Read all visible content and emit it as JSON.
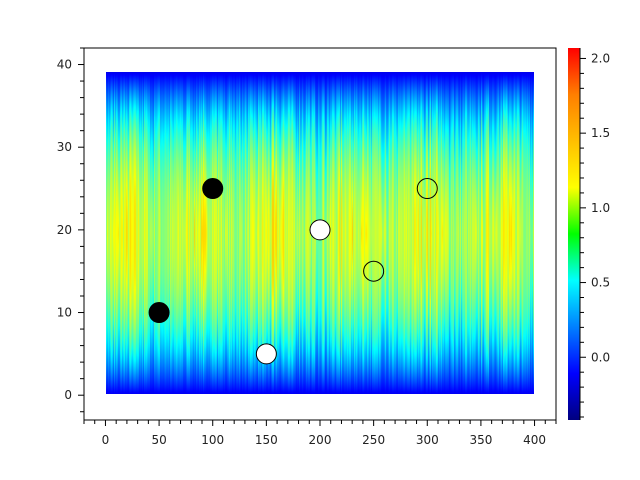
{
  "chart_data": {
    "type": "heatmap",
    "title": "",
    "xlabel": "",
    "ylabel": "",
    "xlim": [
      -20,
      420
    ],
    "ylim": [
      -3,
      42
    ],
    "heatmap_extent": {
      "x": [
        0,
        400
      ],
      "y": [
        0,
        39
      ]
    },
    "heatmap_description_profile": {
      "y": [
        0,
        5,
        10,
        15,
        20,
        25,
        30,
        35,
        39
      ],
      "approx_value": [
        0.1,
        0.45,
        0.75,
        0.9,
        1.0,
        0.9,
        0.75,
        0.45,
        0.1
      ]
    },
    "x_ticks": [
      "0",
      "50",
      "100",
      "150",
      "200",
      "250",
      "300",
      "350",
      "400"
    ],
    "y_ticks": [
      "0",
      "10",
      "20",
      "30",
      "40"
    ],
    "colorbar": {
      "range": [
        -0.42,
        2.07
      ],
      "ticks": [
        "0.0",
        "0.5",
        "1.0",
        "1.5",
        "2.0"
      ],
      "colormap": "jet"
    },
    "grid": false,
    "points": [
      {
        "x": 50,
        "y": 10,
        "style": "filled-black"
      },
      {
        "x": 100,
        "y": 25,
        "style": "filled-black"
      },
      {
        "x": 150,
        "y": 5,
        "style": "filled-white"
      },
      {
        "x": 200,
        "y": 20,
        "style": "filled-white"
      },
      {
        "x": 250,
        "y": 15,
        "style": "open"
      },
      {
        "x": 300,
        "y": 25,
        "style": "open"
      }
    ]
  }
}
